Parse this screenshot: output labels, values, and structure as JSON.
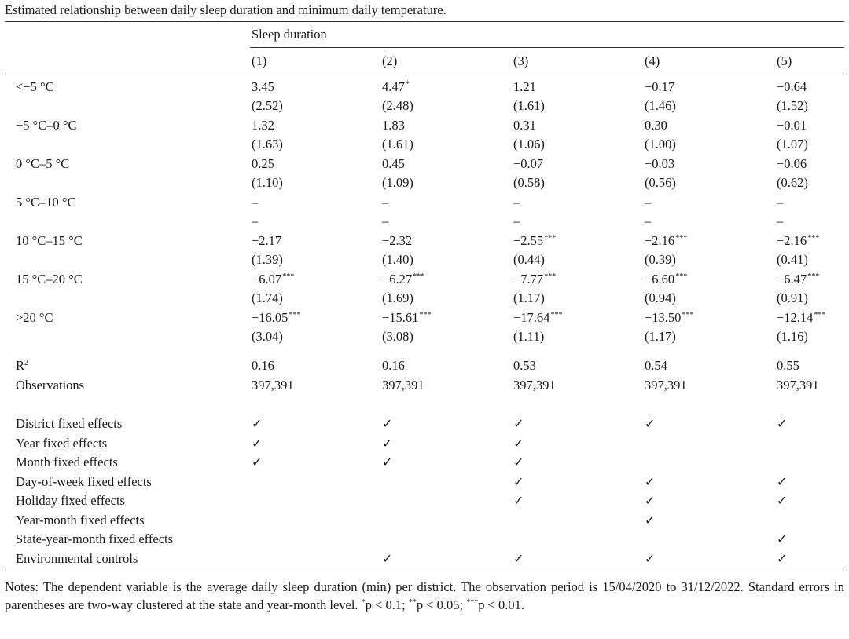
{
  "caption": "Estimated relationship between daily sleep duration and minimum daily temperature.",
  "header": {
    "group_label": "Sleep duration",
    "columns": [
      "(1)",
      "(2)",
      "(3)",
      "(4)",
      "(5)"
    ]
  },
  "rows": [
    {
      "label": "<−5 °C",
      "coefs": [
        "3.45",
        "4.47",
        "1.21",
        "−0.17",
        "−0.64"
      ],
      "stars": [
        "",
        "*",
        "",
        "",
        ""
      ],
      "ses": [
        "(2.52)",
        "(2.48)",
        "(1.61)",
        "(1.46)",
        "(1.52)"
      ]
    },
    {
      "label": "−5 °C–0 °C",
      "coefs": [
        "1.32",
        "1.83",
        "0.31",
        "0.30",
        "−0.01"
      ],
      "stars": [
        "",
        "",
        "",
        "",
        ""
      ],
      "ses": [
        "(1.63)",
        "(1.61)",
        "(1.06)",
        "(1.00)",
        "(1.07)"
      ]
    },
    {
      "label": "0 °C–5 °C",
      "coefs": [
        "0.25",
        "0.45",
        "−0.07",
        "−0.03",
        "−0.06"
      ],
      "stars": [
        "",
        "",
        "",
        "",
        ""
      ],
      "ses": [
        "(1.10)",
        "(1.09)",
        "(0.58)",
        "(0.56)",
        "(0.62)"
      ]
    },
    {
      "label": "5 °C–10 °C",
      "coefs": [
        "–",
        "–",
        "–",
        "–",
        "–"
      ],
      "stars": [
        "",
        "",
        "",
        "",
        ""
      ],
      "ses": [
        "–",
        "–",
        "–",
        "–",
        "–"
      ]
    },
    {
      "label": "10 °C–15 °C",
      "coefs": [
        "−2.17",
        "−2.32",
        "−2.55",
        "−2.16",
        "−2.16"
      ],
      "stars": [
        "",
        "",
        "***",
        "***",
        "***"
      ],
      "ses": [
        "(1.39)",
        "(1.40)",
        "(0.44)",
        "(0.39)",
        "(0.41)"
      ]
    },
    {
      "label": "15 °C–20 °C",
      "coefs": [
        "−6.07",
        "−6.27",
        "−7.77",
        "−6.60",
        "−6.47"
      ],
      "stars": [
        "***",
        "***",
        "***",
        "***",
        "***"
      ],
      "ses": [
        "(1.74)",
        "(1.69)",
        "(1.17)",
        "(0.94)",
        "(0.91)"
      ]
    },
    {
      "label": ">20 °C",
      "coefs": [
        "−16.05",
        "−15.61",
        "−17.64",
        "−13.50",
        "−12.14"
      ],
      "stars": [
        "***",
        "***",
        "***",
        "***",
        "***"
      ],
      "ses": [
        "(3.04)",
        "(3.08)",
        "(1.11)",
        "(1.17)",
        "(1.16)"
      ]
    }
  ],
  "stats": {
    "r2_label": "R",
    "r2_sup": "2",
    "r2": [
      "0.16",
      "0.16",
      "0.53",
      "0.54",
      "0.55"
    ],
    "obs_label": "Observations",
    "obs": [
      "397,391",
      "397,391",
      "397,391",
      "397,391",
      "397,391"
    ]
  },
  "check_glyph": "✓",
  "controls": [
    {
      "label": "District fixed effects",
      "checks": [
        true,
        true,
        true,
        true,
        true
      ]
    },
    {
      "label": "Year fixed effects",
      "checks": [
        true,
        true,
        true,
        false,
        false
      ]
    },
    {
      "label": "Month fixed effects",
      "checks": [
        true,
        true,
        true,
        false,
        false
      ]
    },
    {
      "label": "Day-of-week fixed effects",
      "checks": [
        false,
        false,
        true,
        true,
        true
      ]
    },
    {
      "label": "Holiday fixed effects",
      "checks": [
        false,
        false,
        true,
        true,
        true
      ]
    },
    {
      "label": "Year-month fixed effects",
      "checks": [
        false,
        false,
        false,
        true,
        false
      ]
    },
    {
      "label": "State-year-month fixed effects",
      "checks": [
        false,
        false,
        false,
        false,
        true
      ]
    },
    {
      "label": "Environmental controls",
      "checks": [
        false,
        true,
        true,
        true,
        true
      ]
    }
  ],
  "notes": {
    "main": "Notes: The dependent variable is the average daily sleep duration (min) per district. The observation period is 15/04/2020 to 31/12/2022. Standard errors in parentheses are two-way clustered at the state and year-month level.",
    "s1": "*",
    "t1": "p < 0.1;",
    "s2": "**",
    "t2": "p < 0.05;",
    "s3": "***",
    "t3": "p < 0.01."
  }
}
